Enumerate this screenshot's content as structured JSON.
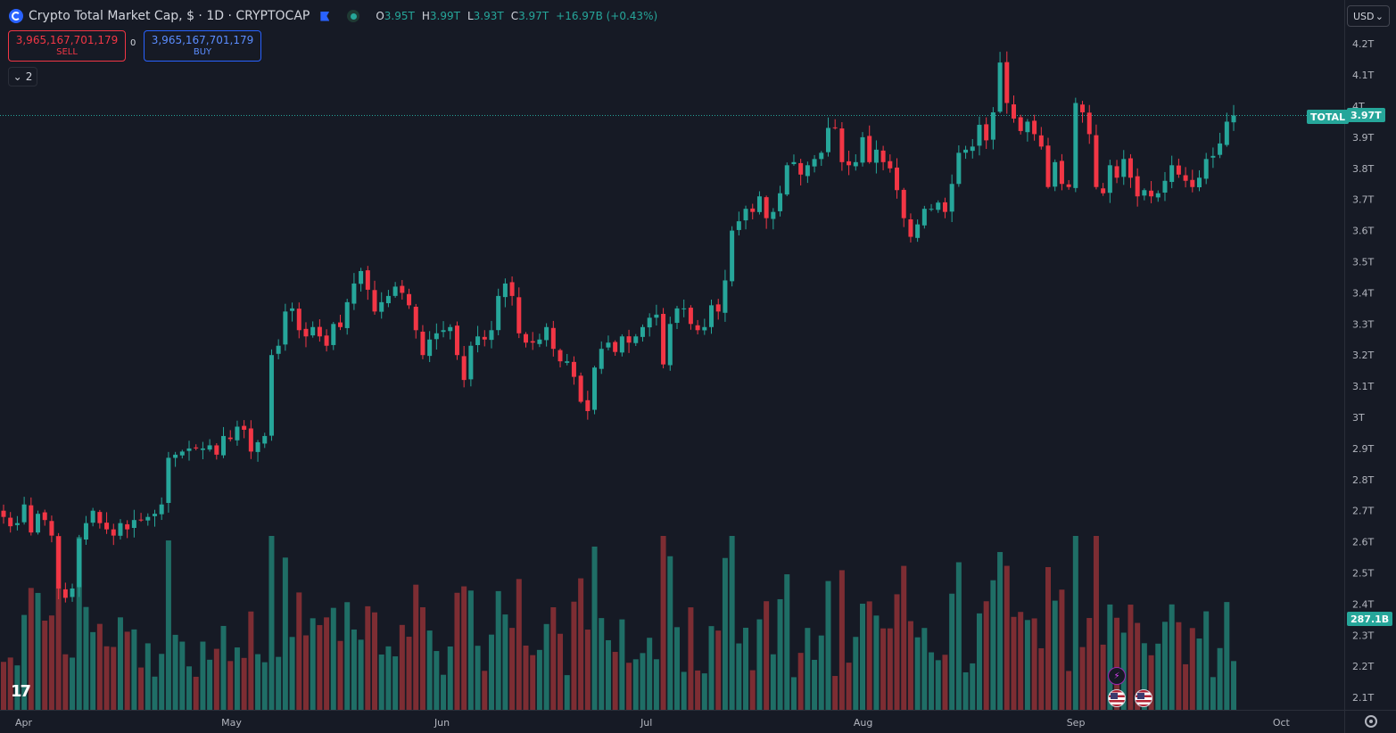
{
  "header": {
    "title": "Crypto Total Market Cap, $ · 1D · CRYPTOCAP",
    "ohlc": [
      {
        "k": "O",
        "v": "3.95T"
      },
      {
        "k": "H",
        "v": "3.99T"
      },
      {
        "k": "L",
        "v": "3.93T"
      },
      {
        "k": "C",
        "v": "3.97T"
      },
      {
        "k": "",
        "v": "+16.97B (+0.43%)"
      }
    ]
  },
  "trade": {
    "sell_price": "3,965,167,701,179",
    "sell_label": "SELL",
    "buy_price": "3,965,167,701,179",
    "buy_label": "BUY",
    "spread": "0"
  },
  "indicators_toggle": "2",
  "currency": "USD",
  "colors": {
    "up": "#26a69a",
    "down": "#f23645",
    "up_vol": "#1f6e66",
    "down_vol": "#7d2d33",
    "bg": "#161a25",
    "grid": "#2a2e39",
    "text": "#b2b5be"
  },
  "badges": {
    "symbol": "TOTAL",
    "last": "3.97T",
    "volume": "287.1B"
  },
  "chart_data": {
    "type": "candlestick",
    "y_ticks": [
      "4.2T",
      "4.1T",
      "4T",
      "3.9T",
      "3.8T",
      "3.7T",
      "3.6T",
      "3.5T",
      "3.4T",
      "3.3T",
      "3.2T",
      "3.1T",
      "3T",
      "2.9T",
      "2.8T",
      "2.7T",
      "2.6T",
      "2.5T",
      "2.4T",
      "2.3T",
      "2.2T",
      "2.1T"
    ],
    "y_tick_values": [
      4.2,
      4.1,
      4.0,
      3.9,
      3.8,
      3.7,
      3.6,
      3.5,
      3.4,
      3.3,
      3.2,
      3.1,
      3.0,
      2.9,
      2.8,
      2.7,
      2.6,
      2.5,
      2.4,
      2.3,
      2.2,
      2.1
    ],
    "x_ticks": [
      "Apr",
      "May",
      "Jun",
      "Jul",
      "Aug",
      "Sep",
      "Oct"
    ],
    "x_tick_days": [
      0,
      30,
      61,
      91,
      122,
      153,
      183
    ],
    "last_price": 3.97,
    "unit": "T",
    "close": [
      2.68,
      2.65,
      2.66,
      2.72,
      2.63,
      2.69,
      2.67,
      2.62,
      2.45,
      2.42,
      2.45,
      2.61,
      2.66,
      2.7,
      2.66,
      2.64,
      2.62,
      2.66,
      2.64,
      2.67,
      2.67,
      2.68,
      2.69,
      2.72,
      2.87,
      2.88,
      2.89,
      2.9,
      2.9,
      2.9,
      2.91,
      2.88,
      2.94,
      2.93,
      2.97,
      2.96,
      2.89,
      2.92,
      2.94,
      3.2,
      3.23,
      3.34,
      3.35,
      3.28,
      3.26,
      3.29,
      3.26,
      3.23,
      3.3,
      3.29,
      3.37,
      3.43,
      3.47,
      3.41,
      3.34,
      3.37,
      3.39,
      3.42,
      3.4,
      3.36,
      3.28,
      3.2,
      3.25,
      3.27,
      3.28,
      3.29,
      3.2,
      3.12,
      3.23,
      3.26,
      3.25,
      3.28,
      3.39,
      3.43,
      3.39,
      3.27,
      3.24,
      3.24,
      3.25,
      3.29,
      3.22,
      3.18,
      3.18,
      3.13,
      3.05,
      3.02,
      3.16,
      3.22,
      3.24,
      3.21,
      3.26,
      3.24,
      3.26,
      3.29,
      3.32,
      3.33,
      3.17,
      3.3,
      3.35,
      3.35,
      3.3,
      3.28,
      3.29,
      3.36,
      3.34,
      3.44,
      3.6,
      3.63,
      3.67,
      3.66,
      3.71,
      3.64,
      3.66,
      3.72,
      3.81,
      3.82,
      3.78,
      3.81,
      3.83,
      3.85,
      3.93,
      3.93,
      3.82,
      3.81,
      3.82,
      3.9,
      3.82,
      3.86,
      3.82,
      3.8,
      3.73,
      3.64,
      3.58,
      3.62,
      3.67,
      3.67,
      3.69,
      3.66,
      3.75,
      3.85,
      3.86,
      3.87,
      3.94,
      3.89,
      3.98,
      4.14,
      4.01,
      3.96,
      3.92,
      3.95,
      3.91,
      3.87,
      3.74,
      3.82,
      3.75,
      3.74,
      4.01,
      3.98,
      3.91,
      3.74,
      3.72,
      3.81,
      3.77,
      3.83,
      3.77,
      3.71,
      3.73,
      3.71,
      3.72,
      3.76,
      3.81,
      3.78,
      3.76,
      3.74,
      3.77,
      3.83,
      3.84,
      3.88,
      3.95,
      3.97
    ]
  }
}
